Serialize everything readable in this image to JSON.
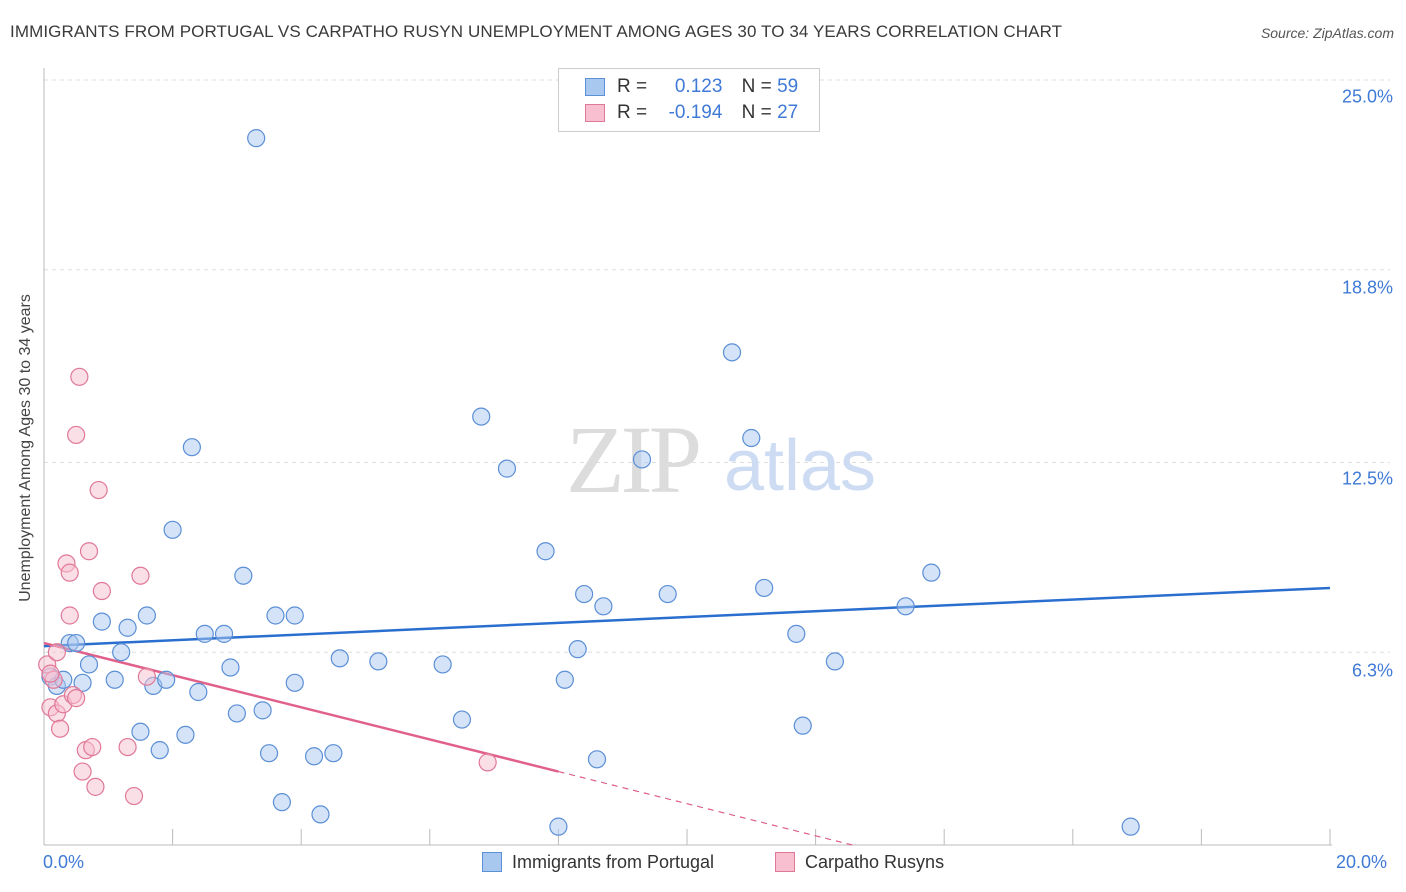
{
  "title": "IMMIGRANTS FROM PORTUGAL VS CARPATHO RUSYN UNEMPLOYMENT AMONG AGES 30 TO 34 YEARS CORRELATION CHART",
  "source": "Source: ZipAtlas.com",
  "legend": {
    "rows": [
      {
        "r_label": "R =",
        "r_value": "0.123",
        "n_label": "N =",
        "n_value": "59",
        "color": "#a9c8f0",
        "border": "#5b8fd6"
      },
      {
        "r_label": "R =",
        "r_value": "-0.194",
        "n_label": "N =",
        "n_value": "27",
        "color": "#f7bfd0",
        "border": "#e07898"
      }
    ]
  },
  "bottom_legend": [
    {
      "label": "Immigrants from Portugal",
      "color": "#a9c8f0",
      "border": "#5b8fd6"
    },
    {
      "label": "Carpatho Rusyns",
      "color": "#f7bfd0",
      "border": "#e07898"
    }
  ],
  "watermark": {
    "zip": "ZIP",
    "atlas": "atlas"
  },
  "chart_data": {
    "type": "scatter",
    "xlabel": "",
    "ylabel": "Unemployment Among Ages 30 to 34 years",
    "xlim": [
      0,
      20
    ],
    "ylim": [
      0,
      25.0
    ],
    "x_tick_labels": [
      "0.0%",
      "20.0%"
    ],
    "y_ticks": [
      6.3,
      12.5,
      18.8,
      25.0
    ],
    "y_tick_labels": [
      "6.3%",
      "12.5%",
      "18.8%",
      "25.0%"
    ],
    "grid": true,
    "series": [
      {
        "name": "Immigrants from Portugal",
        "color": "#5b8fd6",
        "fill": "#a9c8f0",
        "trend": {
          "x": [
            0,
            20
          ],
          "y": [
            6.5,
            8.4
          ],
          "color": "#2a6fcf"
        },
        "points": [
          [
            0.1,
            5.5
          ],
          [
            0.2,
            5.2
          ],
          [
            0.3,
            5.4
          ],
          [
            0.4,
            6.6
          ],
          [
            0.5,
            6.6
          ],
          [
            0.6,
            5.3
          ],
          [
            0.7,
            5.9
          ],
          [
            0.9,
            7.3
          ],
          [
            1.1,
            5.4
          ],
          [
            1.2,
            6.3
          ],
          [
            1.3,
            7.1
          ],
          [
            1.5,
            3.7
          ],
          [
            1.6,
            7.5
          ],
          [
            1.7,
            5.2
          ],
          [
            1.8,
            3.1
          ],
          [
            1.9,
            5.4
          ],
          [
            2.0,
            10.3
          ],
          [
            2.2,
            3.6
          ],
          [
            2.3,
            13.0
          ],
          [
            2.4,
            5.0
          ],
          [
            2.5,
            6.9
          ],
          [
            2.8,
            6.9
          ],
          [
            2.9,
            5.8
          ],
          [
            3.0,
            4.3
          ],
          [
            3.1,
            8.8
          ],
          [
            3.3,
            23.1
          ],
          [
            3.4,
            4.4
          ],
          [
            3.5,
            3.0
          ],
          [
            3.6,
            7.5
          ],
          [
            3.7,
            1.4
          ],
          [
            3.9,
            5.3
          ],
          [
            3.9,
            7.5
          ],
          [
            4.2,
            2.9
          ],
          [
            4.3,
            1.0
          ],
          [
            4.5,
            3.0
          ],
          [
            4.6,
            6.1
          ],
          [
            5.2,
            6.0
          ],
          [
            6.2,
            5.9
          ],
          [
            6.5,
            4.1
          ],
          [
            6.8,
            14.0
          ],
          [
            7.2,
            12.3
          ],
          [
            7.8,
            9.6
          ],
          [
            8.0,
            0.6
          ],
          [
            8.1,
            5.4
          ],
          [
            8.3,
            6.4
          ],
          [
            8.4,
            8.2
          ],
          [
            8.6,
            2.8
          ],
          [
            8.7,
            7.8
          ],
          [
            9.3,
            12.6
          ],
          [
            9.7,
            8.2
          ],
          [
            10.7,
            16.1
          ],
          [
            11.0,
            13.3
          ],
          [
            11.2,
            8.4
          ],
          [
            11.7,
            6.9
          ],
          [
            11.8,
            3.9
          ],
          [
            12.3,
            6.0
          ],
          [
            13.4,
            7.8
          ],
          [
            13.8,
            8.9
          ],
          [
            16.9,
            0.6
          ]
        ]
      },
      {
        "name": "Carpatho Rusyns",
        "color": "#e07898",
        "fill": "#f7bfd0",
        "trend": {
          "x": [
            0,
            8.0
          ],
          "y": [
            6.6,
            2.4
          ],
          "color": "#e0608a"
        },
        "trend_dashed": {
          "x": [
            8.0,
            20
          ],
          "y": [
            2.4,
            -3.9
          ]
        },
        "points": [
          [
            0.05,
            5.9
          ],
          [
            0.1,
            4.5
          ],
          [
            0.15,
            5.4
          ],
          [
            0.2,
            6.3
          ],
          [
            0.2,
            4.3
          ],
          [
            0.25,
            3.8
          ],
          [
            0.3,
            4.6
          ],
          [
            0.35,
            9.2
          ],
          [
            0.4,
            7.5
          ],
          [
            0.4,
            8.9
          ],
          [
            0.45,
            4.9
          ],
          [
            0.5,
            13.4
          ],
          [
            0.5,
            4.8
          ],
          [
            0.55,
            15.3
          ],
          [
            0.6,
            2.4
          ],
          [
            0.65,
            3.1
          ],
          [
            0.7,
            9.6
          ],
          [
            0.75,
            3.2
          ],
          [
            0.8,
            1.9
          ],
          [
            0.85,
            11.6
          ],
          [
            0.9,
            8.3
          ],
          [
            1.3,
            3.2
          ],
          [
            1.4,
            1.6
          ],
          [
            1.5,
            8.8
          ],
          [
            1.6,
            5.5
          ],
          [
            6.9,
            2.7
          ],
          [
            0.1,
            5.6
          ]
        ]
      }
    ]
  }
}
